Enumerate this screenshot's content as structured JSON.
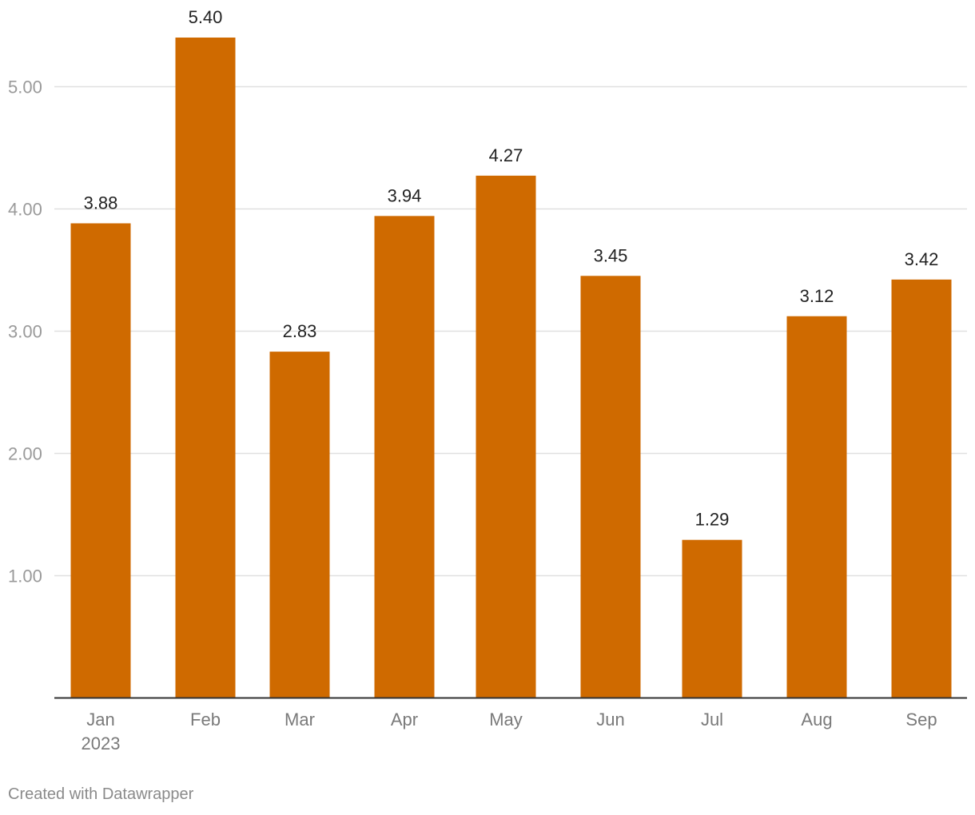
{
  "chart_data": {
    "type": "bar",
    "categories": [
      "Jan",
      "Feb",
      "Mar",
      "Apr",
      "May",
      "Jun",
      "Jul",
      "Aug",
      "Sep"
    ],
    "category_sublabels": [
      "2023",
      "",
      "",
      "",
      "",
      "",
      "",
      "",
      ""
    ],
    "values": [
      3.88,
      5.4,
      2.83,
      3.94,
      4.27,
      3.45,
      1.29,
      3.12,
      3.42
    ],
    "data_labels": [
      "3.88",
      "5.40",
      "2.83",
      "3.94",
      "4.27",
      "3.45",
      "1.29",
      "3.12",
      "3.42"
    ],
    "ylim": [
      0,
      5.4
    ],
    "yticks": [
      1,
      2,
      3,
      4,
      5
    ],
    "ytick_labels": [
      "1.00",
      "2.00",
      "3.00",
      "4.00",
      "5.00"
    ],
    "grid": true,
    "bar_color": "#cf6a00",
    "title": "",
    "xlabel": "",
    "ylabel": ""
  },
  "footer": {
    "credit": "Created with Datawrapper"
  }
}
